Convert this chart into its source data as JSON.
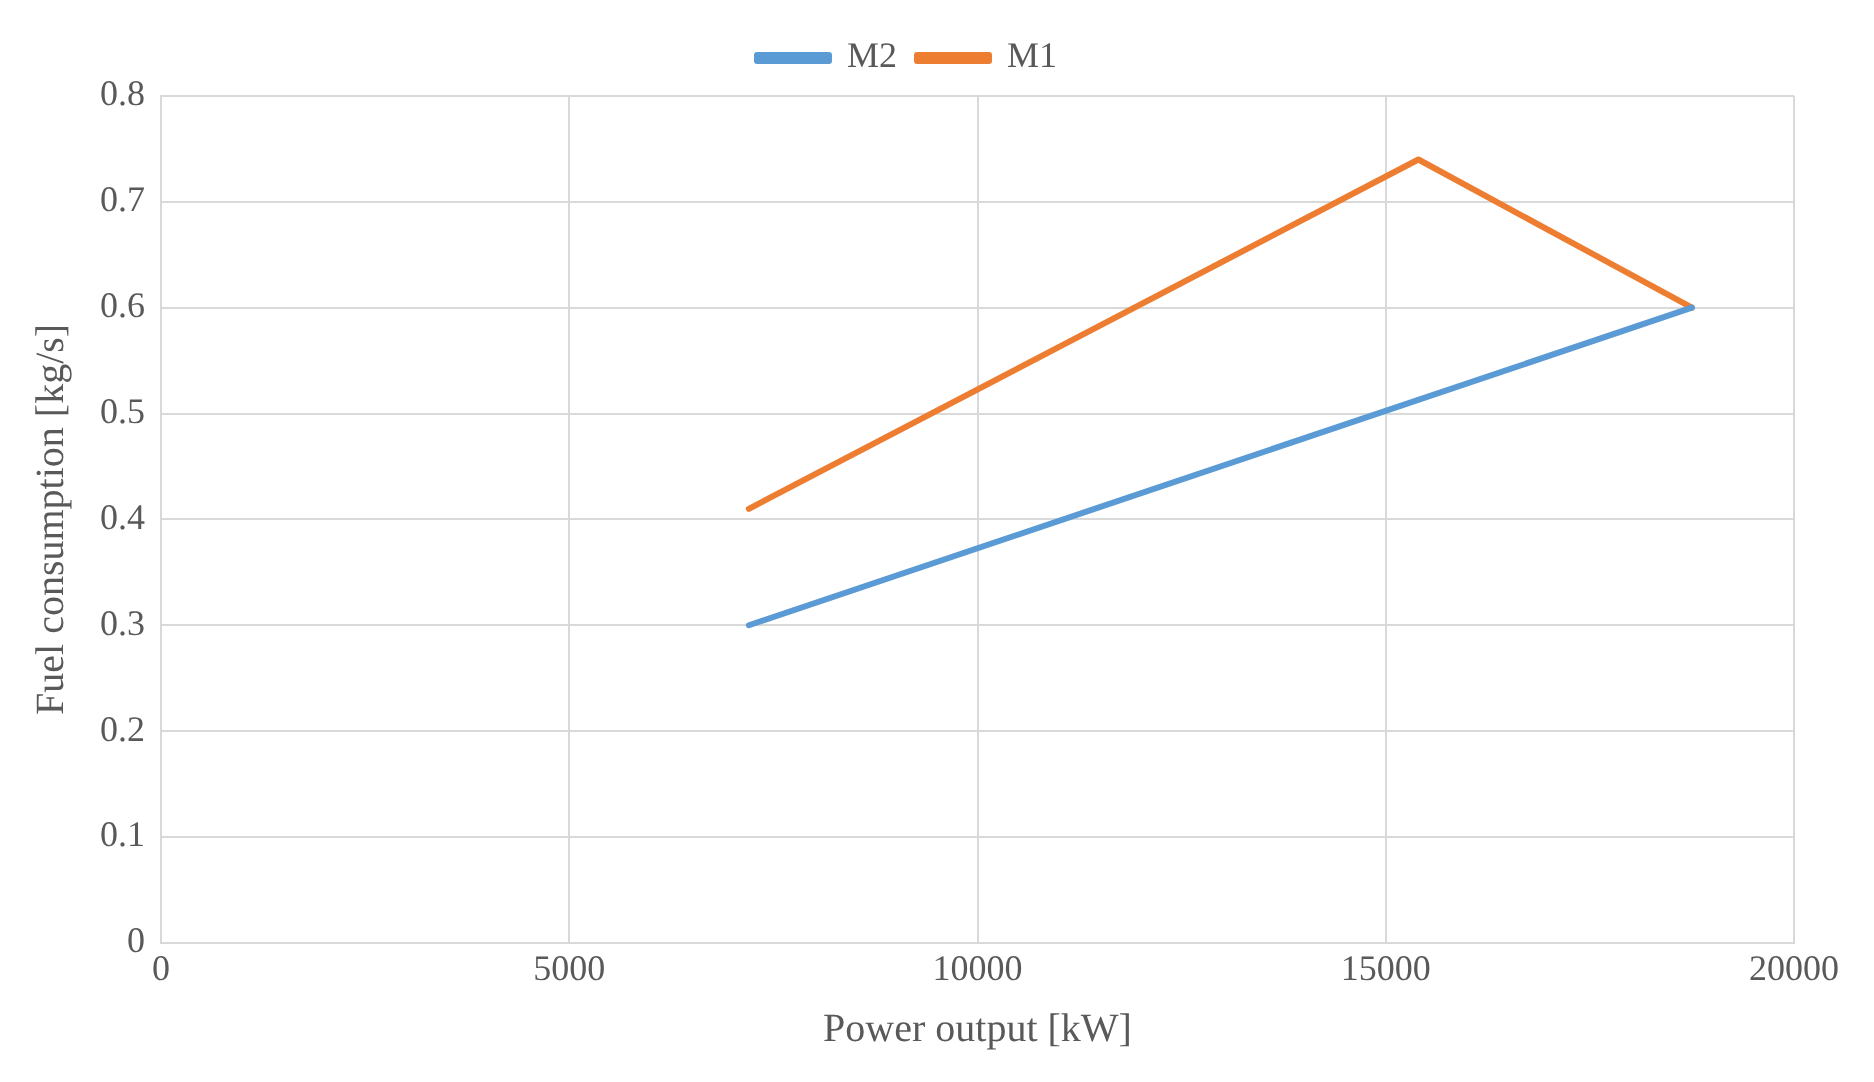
{
  "chart_data": {
    "type": "line",
    "xlabel": "Power output [kW]",
    "ylabel": "Fuel consumption [kg/s]",
    "xlim": [
      0,
      20000
    ],
    "xticks": [
      0,
      5000,
      10000,
      15000,
      20000
    ],
    "ylim": [
      0,
      0.8
    ],
    "yticks": [
      0,
      0.1,
      0.2,
      0.3,
      0.4,
      0.5,
      0.6,
      0.7,
      0.8
    ],
    "grid": true,
    "legend": "top",
    "marker": "none",
    "line_style": "solid",
    "series": [
      {
        "name": "M2",
        "color": "#5b9bd5",
        "x": [
          7200,
          18750
        ],
        "values": [
          0.3,
          0.6
        ]
      },
      {
        "name": "M1",
        "color": "#ed7d31",
        "x": [
          7200,
          15400,
          18750
        ],
        "values": [
          0.41,
          0.74,
          0.6
        ]
      }
    ]
  }
}
